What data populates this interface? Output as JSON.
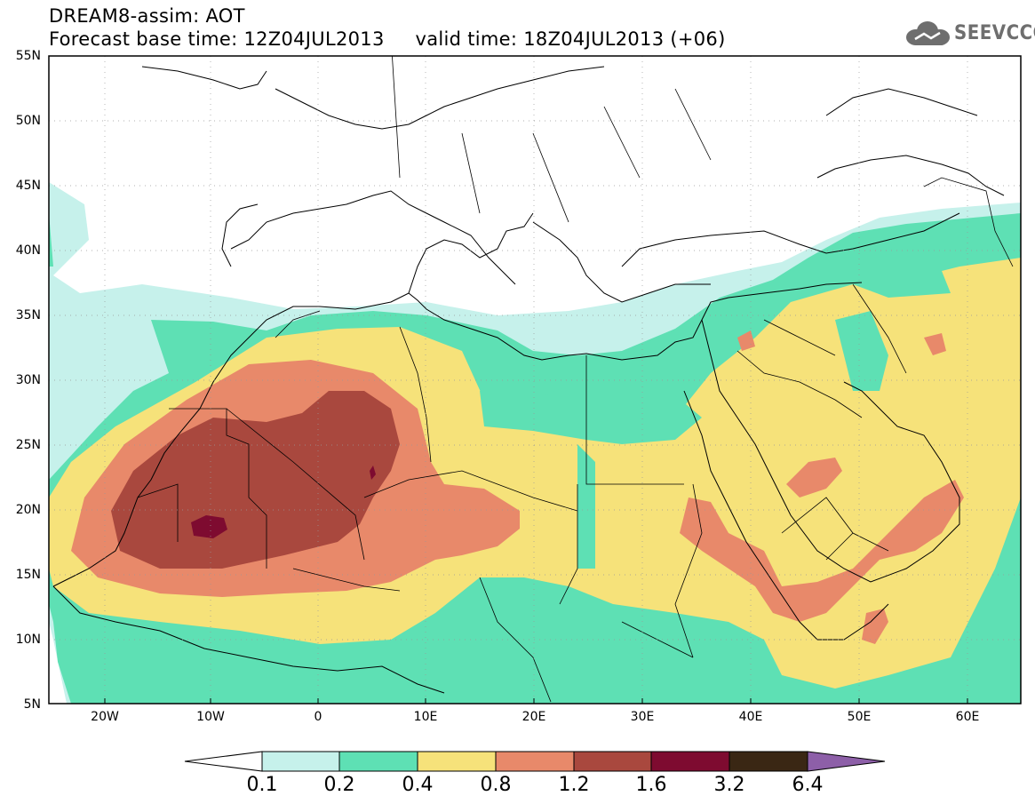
{
  "header": {
    "title_line1": "DREAM8-assim: AOT",
    "title_line2": "Forecast base time: 12Z04JUL2013     valid time: 18Z04JUL2013 (+06)",
    "logo_text": "SEEVCCC"
  },
  "map": {
    "lat_labels": [
      "55N",
      "50N",
      "45N",
      "40N",
      "35N",
      "30N",
      "25N",
      "20N",
      "15N",
      "10N",
      "5N"
    ],
    "lon_labels": [
      "20W",
      "10W",
      "0",
      "10E",
      "20E",
      "30E",
      "40E",
      "50E",
      "60E"
    ],
    "extent": {
      "lon_min": -25,
      "lon_max": 65,
      "lat_min": 5,
      "lat_max": 55
    }
  },
  "colorbar": {
    "labels": [
      "0.1",
      "0.2",
      "0.4",
      "0.8",
      "1.2",
      "1.6",
      "3.2",
      "6.4"
    ],
    "colors": [
      "#ffffff",
      "#c6f1eb",
      "#5ee0b4",
      "#f6e27a",
      "#e8896a",
      "#a9483e",
      "#7e0b30",
      "#3a2714",
      "#8d5fa8"
    ]
  },
  "colors": {
    "c1": "#c6f1eb",
    "c2": "#5ee0b4",
    "c3": "#f6e27a",
    "c4": "#e8896a",
    "c5": "#a9483e",
    "c6": "#7e0b30",
    "border": "#000000",
    "logo": "#6e6e6e"
  }
}
